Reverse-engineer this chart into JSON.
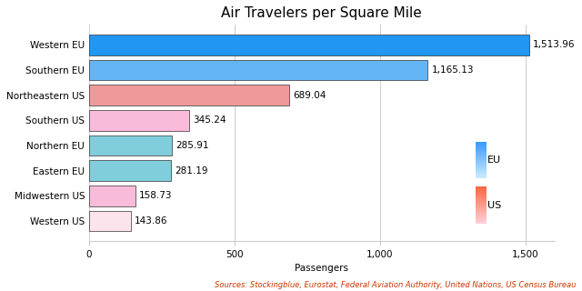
{
  "title": "Air Travelers per Square Mile",
  "xlabel": "Passengers",
  "source_text": "Sources: Stockingblue, Eurostat, Federal Aviation Authority, United Nations, US Census Bureau",
  "categories": [
    "Western EU",
    "Southern EU",
    "Northeastern US",
    "Southern US",
    "Northern EU",
    "Eastern EU",
    "Midwestern US",
    "Western US"
  ],
  "values": [
    1513.96,
    1165.13,
    689.04,
    345.24,
    285.91,
    281.19,
    158.73,
    143.86
  ],
  "bar_colors": [
    "#2196F3",
    "#64B5F6",
    "#EF9A9A",
    "#F8BBD9",
    "#80CEDB",
    "#80CEDB",
    "#F8BBD9",
    "#FCE4EC"
  ],
  "label_values": [
    "1,513.96",
    "1,165.13",
    "689.04",
    "345.24",
    "285.91",
    "281.19",
    "158.73",
    "143.86"
  ],
  "xlim": [
    0,
    1600
  ],
  "xticks": [
    0,
    500,
    1000,
    1500
  ],
  "xtick_labels": [
    "0",
    "500",
    "1,000",
    "1,500"
  ],
  "legend_eu_top": "#3399FF",
  "legend_eu_bottom": "#CCECFF",
  "legend_us_top": "#FF6644",
  "legend_us_bottom": "#FFD0D8",
  "background_color": "#ffffff",
  "grid_color": "#cccccc",
  "edge_color": "#333333",
  "title_fontsize": 11,
  "label_fontsize": 7.5,
  "tick_fontsize": 7.5,
  "source_fontsize": 6
}
